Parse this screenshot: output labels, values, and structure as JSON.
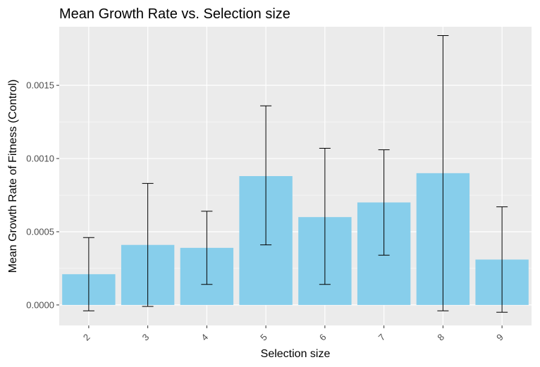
{
  "chart_data": {
    "type": "bar",
    "title": "Mean Growth Rate vs. Selection size",
    "xlabel": "Selection size",
    "ylabel": "Mean Growth Rate of Fitness (Control)",
    "categories": [
      "2",
      "3",
      "4",
      "5",
      "6",
      "7",
      "8",
      "9"
    ],
    "values": [
      0.00021,
      0.00041,
      0.00039,
      0.00088,
      0.0006,
      0.0007,
      0.0009,
      0.00031
    ],
    "error_low": [
      -4e-05,
      -1e-05,
      0.00014,
      0.00041,
      0.00014,
      0.00034,
      -4e-05,
      -5e-05
    ],
    "error_high": [
      0.00046,
      0.00083,
      0.00064,
      0.00136,
      0.00107,
      0.00106,
      0.00184,
      0.00067
    ],
    "yticks": [
      0.0,
      0.0005,
      0.001,
      0.0015
    ],
    "ytick_labels": [
      "0.0000",
      "0.0005",
      "0.0010",
      "0.0015"
    ],
    "ylim": [
      -0.00014,
      0.0019
    ],
    "grid": true,
    "colors": {
      "bar": "#87CEEB",
      "panel": "#EBEBEB",
      "grid_major": "#FFFFFF",
      "error_bar": "#000000"
    }
  }
}
